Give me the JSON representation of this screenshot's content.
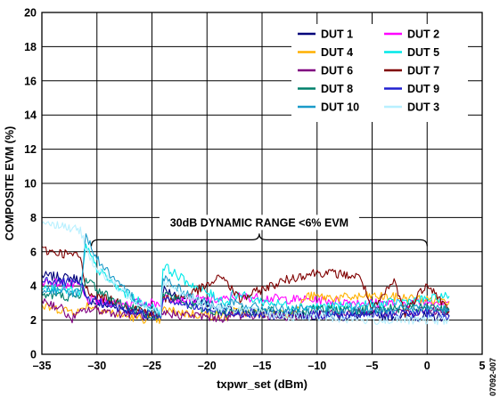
{
  "chart_data": {
    "type": "line",
    "title": "",
    "xlabel": "txpwr_set (dBm)",
    "ylabel": "COMPOSITE EVM (%)",
    "xlim": [
      -35,
      5
    ],
    "ylim": [
      0,
      20
    ],
    "xticks": [
      -35,
      -30,
      -25,
      -20,
      -15,
      -10,
      -5,
      0,
      5
    ],
    "xtick_labels": [
      "–35",
      "–30",
      "–25",
      "–20",
      "–15",
      "–10",
      "–5",
      "0",
      "5"
    ],
    "yticks": [
      0,
      2,
      4,
      6,
      8,
      10,
      12,
      14,
      16,
      18,
      20
    ],
    "grid": true,
    "legend_position": "top-right",
    "figure_id": "07092-007",
    "annotation": {
      "text": "30dB DYNAMIC RANGE <6% EVM",
      "x_from": -30.5,
      "x_to": 0,
      "y": 6.7
    },
    "series": [
      {
        "name": "DUT 1",
        "color": "#00007a",
        "x": [
          -35,
          -33,
          -31.5,
          -31,
          -30,
          -28,
          -26,
          -24.2,
          -24,
          -22,
          -20,
          -18,
          -17.8,
          -15,
          -12,
          -10,
          -8,
          -5,
          -2,
          0,
          2
        ],
        "y": [
          4.6,
          4.5,
          4.4,
          3.2,
          3.0,
          2.7,
          2.4,
          2.2,
          3.8,
          3.2,
          2.9,
          2.7,
          2.5,
          2.4,
          2.3,
          2.3,
          2.2,
          2.3,
          2.2,
          2.2,
          2.2
        ]
      },
      {
        "name": "DUT 2",
        "color": "#ff00ff",
        "x": [
          -35,
          -33,
          -31.5,
          -31,
          -30,
          -28,
          -26,
          -24.2,
          -24,
          -22,
          -20,
          -18,
          -17.8,
          -15,
          -12,
          -11,
          -8,
          -5,
          -2,
          0,
          2
        ],
        "y": [
          4.3,
          4.1,
          4.0,
          3.2,
          3.1,
          3.0,
          3.0,
          3.0,
          3.3,
          3.2,
          3.2,
          3.2,
          3.4,
          3.3,
          3.2,
          3.2,
          3.1,
          3.0,
          3.0,
          3.1,
          3.1
        ]
      },
      {
        "name": "DUT 4",
        "color": "#ffb000",
        "x": [
          -35,
          -33,
          -31.5,
          -31,
          -30,
          -28,
          -26,
          -24.2,
          -24,
          -22,
          -20,
          -18,
          -17.8,
          -15,
          -12,
          -11,
          -8,
          -5,
          -2,
          0,
          2
        ],
        "y": [
          2.8,
          2.6,
          2.5,
          2.9,
          2.7,
          2.3,
          2.1,
          2.0,
          2.6,
          2.4,
          2.3,
          2.2,
          2.5,
          2.4,
          2.4,
          3.4,
          3.3,
          3.4,
          3.3,
          3.2,
          3.1
        ]
      },
      {
        "name": "DUT 5",
        "color": "#00e8e8",
        "x": [
          -35,
          -33,
          -31.5,
          -31,
          -30,
          -28,
          -26,
          -24.2,
          -24,
          -22,
          -20,
          -18,
          -17.8,
          -15,
          -12,
          -10,
          -8,
          -5,
          -2,
          0,
          2
        ],
        "y": [
          4.0,
          3.8,
          3.6,
          6.3,
          5.0,
          3.8,
          3.0,
          2.5,
          5.2,
          4.3,
          3.6,
          3.0,
          3.6,
          3.1,
          2.8,
          2.8,
          2.8,
          2.9,
          3.1,
          3.2,
          3.4
        ]
      },
      {
        "name": "DUT 6",
        "color": "#800080",
        "x": [
          -35,
          -33,
          -32.5,
          -31.5,
          -31,
          -30,
          -28,
          -26,
          -24.2,
          -24,
          -22,
          -20,
          -18,
          -17.8,
          -15,
          -12,
          -10,
          -8,
          -5,
          -2,
          0,
          2
        ],
        "y": [
          3.2,
          2.6,
          2.0,
          2.4,
          2.6,
          2.6,
          2.4,
          2.3,
          2.1,
          2.4,
          2.3,
          2.2,
          2.1,
          2.3,
          2.3,
          2.2,
          2.3,
          2.4,
          2.5,
          2.5,
          2.5,
          2.5
        ]
      },
      {
        "name": "DUT 7",
        "color": "#800000",
        "x": [
          -35,
          -33,
          -31.5,
          -31,
          -30,
          -28,
          -26,
          -24.2,
          -24,
          -22,
          -20,
          -18.5,
          -18,
          -17,
          -15,
          -13,
          -11.5,
          -10,
          -8,
          -6,
          -5,
          -3,
          -2,
          0,
          2
        ],
        "y": [
          6.1,
          5.9,
          5.7,
          3.8,
          3.4,
          3.0,
          2.6,
          2.2,
          3.2,
          3.4,
          4.0,
          4.6,
          4.0,
          3.2,
          3.8,
          4.3,
          4.6,
          4.8,
          4.7,
          4.5,
          2.5,
          4.3,
          2.4,
          4.2,
          2.5
        ]
      },
      {
        "name": "DUT 8",
        "color": "#00806b",
        "x": [
          -35,
          -33,
          -31.5,
          -31,
          -30,
          -28,
          -26,
          -24.2,
          -24,
          -22,
          -20,
          -18,
          -17.8,
          -15,
          -12,
          -10,
          -8,
          -5,
          -2,
          0,
          2
        ],
        "y": [
          3.5,
          3.4,
          3.3,
          4.5,
          3.8,
          3.0,
          2.5,
          2.2,
          3.6,
          3.0,
          2.6,
          2.4,
          2.6,
          2.5,
          2.5,
          2.6,
          2.6,
          2.6,
          2.7,
          2.7,
          2.6
        ]
      },
      {
        "name": "DUT 9",
        "color": "#2020d0",
        "x": [
          -35,
          -33,
          -31.5,
          -31,
          -30,
          -28,
          -26,
          -24.2,
          -24,
          -22,
          -20,
          -18,
          -17.8,
          -15,
          -12,
          -10,
          -8,
          -5,
          -2,
          0,
          2
        ],
        "y": [
          4.4,
          4.2,
          4.1,
          3.3,
          3.1,
          2.7,
          2.4,
          2.2,
          3.4,
          2.9,
          2.6,
          2.4,
          2.5,
          2.3,
          2.3,
          2.3,
          2.3,
          2.3,
          2.4,
          2.4,
          2.3
        ]
      },
      {
        "name": "DUT 10",
        "color": "#1a9bc9",
        "x": [
          -35,
          -33,
          -31.5,
          -31,
          -30,
          -28,
          -26,
          -24.2,
          -24,
          -22,
          -20,
          -18,
          -17.8,
          -15,
          -12,
          -10,
          -8,
          -5,
          -2,
          0,
          2
        ],
        "y": [
          3.8,
          3.6,
          3.6,
          7.0,
          5.6,
          4.0,
          3.0,
          2.4,
          4.6,
          3.6,
          3.0,
          2.7,
          3.0,
          2.7,
          2.6,
          2.6,
          2.5,
          2.6,
          2.7,
          2.7,
          2.6
        ]
      },
      {
        "name": "DUT 3",
        "color": "#b8f0ff",
        "x": [
          -35,
          -33,
          -31.5,
          -31,
          -30,
          -28,
          -26,
          -24.2,
          -24,
          -22,
          -20,
          -18,
          -17.8,
          -15,
          -12,
          -10,
          -8,
          -5,
          -2,
          0,
          2
        ],
        "y": [
          7.8,
          7.5,
          7.2,
          6.2,
          5.0,
          3.8,
          3.0,
          2.5,
          4.2,
          3.4,
          2.9,
          2.6,
          2.7,
          2.4,
          2.2,
          2.2,
          2.1,
          2.0,
          2.0,
          2.0,
          2.0
        ]
      }
    ]
  }
}
